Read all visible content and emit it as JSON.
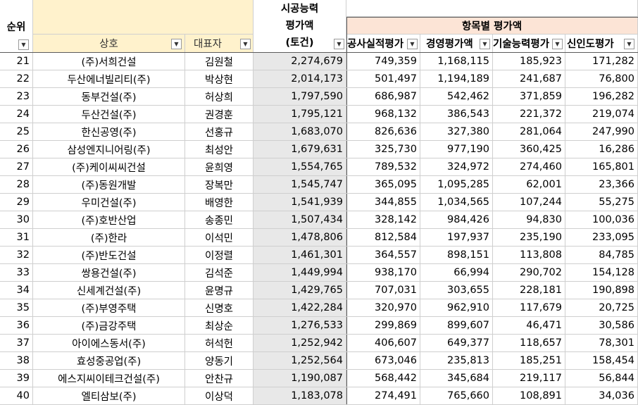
{
  "headers": {
    "rank": "순위",
    "company": "상호",
    "ceo": "대표자",
    "capacity_line1": "시공능력",
    "capacity_line2": "평가액",
    "capacity_line3": "(토건)",
    "group": "항목별 평가액",
    "construction": "공사실적평가",
    "management": "경영평가액",
    "technology": "기술능력평가",
    "credit": "신인도평가"
  },
  "filter_icon": "dropdown-arrow-icon",
  "colors": {
    "yellow": "#fff2cc",
    "gray": "#e8e8e8",
    "pink": "#fce4d6"
  },
  "rows": [
    {
      "rank": "21",
      "company": "(주)서희건설",
      "ceo": "김원철",
      "capacity": "2,274,679",
      "construction": "749,359",
      "management": "1,168,115",
      "technology": "185,923",
      "credit": "171,282"
    },
    {
      "rank": "22",
      "company": "두산에너빌리티(주)",
      "ceo": "박상현",
      "capacity": "2,014,173",
      "construction": "501,497",
      "management": "1,194,189",
      "technology": "241,687",
      "credit": "76,800"
    },
    {
      "rank": "23",
      "company": "동부건설(주)",
      "ceo": "허상희",
      "capacity": "1,797,590",
      "construction": "686,987",
      "management": "542,462",
      "technology": "371,859",
      "credit": "196,282"
    },
    {
      "rank": "24",
      "company": "두산건설(주)",
      "ceo": "권경훈",
      "capacity": "1,795,121",
      "construction": "968,132",
      "management": "386,543",
      "technology": "221,372",
      "credit": "219,074"
    },
    {
      "rank": "25",
      "company": "한신공영(주)",
      "ceo": "선홍규",
      "capacity": "1,683,070",
      "construction": "826,636",
      "management": "327,380",
      "technology": "281,064",
      "credit": "247,990"
    },
    {
      "rank": "26",
      "company": "삼성엔지니어링(주)",
      "ceo": "최성안",
      "capacity": "1,679,631",
      "construction": "325,730",
      "management": "977,190",
      "technology": "360,425",
      "credit": "16,286"
    },
    {
      "rank": "27",
      "company": "(주)케이씨씨건설",
      "ceo": "윤희영",
      "capacity": "1,554,765",
      "construction": "789,532",
      "management": "324,972",
      "technology": "274,460",
      "credit": "165,801"
    },
    {
      "rank": "28",
      "company": "(주)동원개발",
      "ceo": "장복만",
      "capacity": "1,545,747",
      "construction": "365,095",
      "management": "1,095,285",
      "technology": "62,001",
      "credit": "23,366"
    },
    {
      "rank": "29",
      "company": "우미건설(주)",
      "ceo": "배영한",
      "capacity": "1,541,939",
      "construction": "344,855",
      "management": "1,034,565",
      "technology": "107,244",
      "credit": "55,275"
    },
    {
      "rank": "30",
      "company": "(주)호반산업",
      "ceo": "송종민",
      "capacity": "1,507,434",
      "construction": "328,142",
      "management": "984,426",
      "technology": "94,830",
      "credit": "100,036"
    },
    {
      "rank": "31",
      "company": "(주)한라",
      "ceo": "이석민",
      "capacity": "1,478,806",
      "construction": "812,584",
      "management": "197,937",
      "technology": "235,190",
      "credit": "233,095"
    },
    {
      "rank": "32",
      "company": "(주)반도건설",
      "ceo": "이정렬",
      "capacity": "1,461,301",
      "construction": "364,557",
      "management": "898,151",
      "technology": "113,808",
      "credit": "84,785"
    },
    {
      "rank": "33",
      "company": "쌍용건설(주)",
      "ceo": "김석준",
      "capacity": "1,449,994",
      "construction": "938,170",
      "management": "66,994",
      "technology": "290,702",
      "credit": "154,128"
    },
    {
      "rank": "34",
      "company": "신세계건설(주)",
      "ceo": "윤명규",
      "capacity": "1,429,765",
      "construction": "707,031",
      "management": "303,655",
      "technology": "228,181",
      "credit": "190,898"
    },
    {
      "rank": "35",
      "company": "(주)부영주택",
      "ceo": "신명호",
      "capacity": "1,422,284",
      "construction": "320,970",
      "management": "962,910",
      "technology": "117,679",
      "credit": "20,725"
    },
    {
      "rank": "36",
      "company": "(주)금강주택",
      "ceo": "최상순",
      "capacity": "1,276,533",
      "construction": "299,869",
      "management": "899,607",
      "technology": "46,471",
      "credit": "30,586"
    },
    {
      "rank": "37",
      "company": "아이에스동서(주)",
      "ceo": "허석헌",
      "capacity": "1,252,942",
      "construction": "406,607",
      "management": "649,377",
      "technology": "118,657",
      "credit": "78,301"
    },
    {
      "rank": "38",
      "company": "효성중공업(주)",
      "ceo": "양동기",
      "capacity": "1,252,564",
      "construction": "673,046",
      "management": "235,813",
      "technology": "185,251",
      "credit": "158,454"
    },
    {
      "rank": "39",
      "company": "에스지씨이테크건설(주)",
      "ceo": "안찬규",
      "capacity": "1,190,087",
      "construction": "568,442",
      "management": "345,684",
      "technology": "219,117",
      "credit": "56,844"
    },
    {
      "rank": "40",
      "company": "엘티삼보(주)",
      "ceo": "이상덕",
      "capacity": "1,183,078",
      "construction": "274,491",
      "management": "765,660",
      "technology": "108,891",
      "credit": "34,036"
    }
  ]
}
